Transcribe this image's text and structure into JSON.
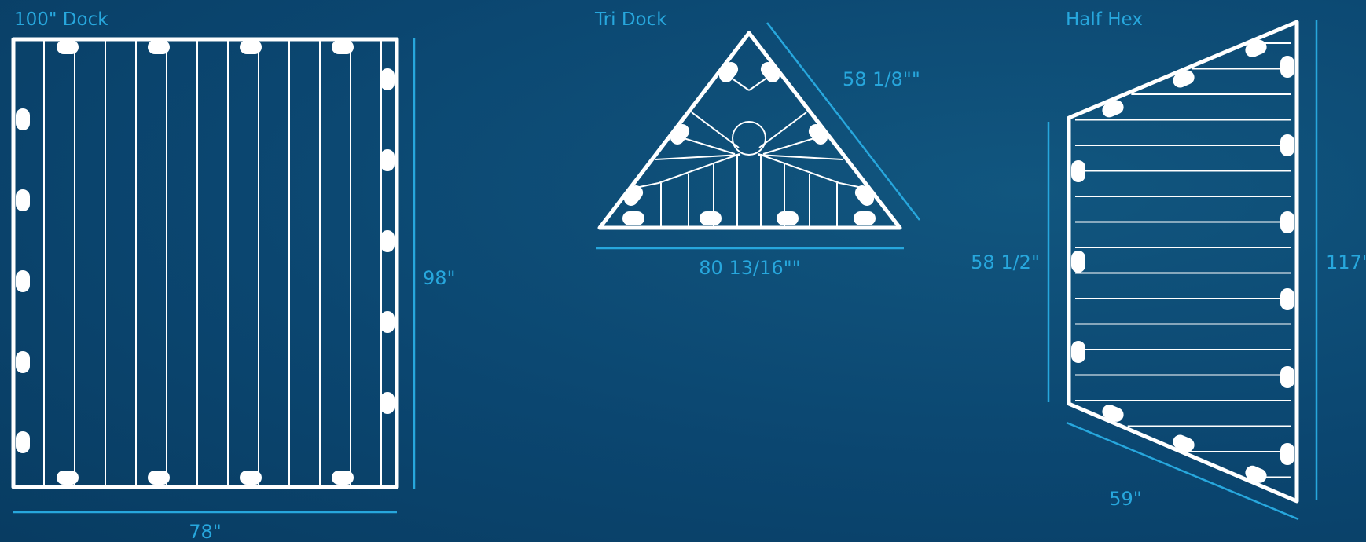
{
  "panels": [
    {
      "title": "100\" Dock",
      "width_label": "78\"",
      "height_label": "98\""
    },
    {
      "title": "Tri Dock",
      "side_label": "58 1/8\"\"",
      "base_label": "80 13/16\"\""
    },
    {
      "title": "Half Hex",
      "left_label": "58 1/2\"",
      "right_label": "117\"",
      "bottom_label": "59\""
    }
  ],
  "colors": {
    "background": "#0b4670",
    "accent": "#27a7dd",
    "line": "#ffffff"
  }
}
